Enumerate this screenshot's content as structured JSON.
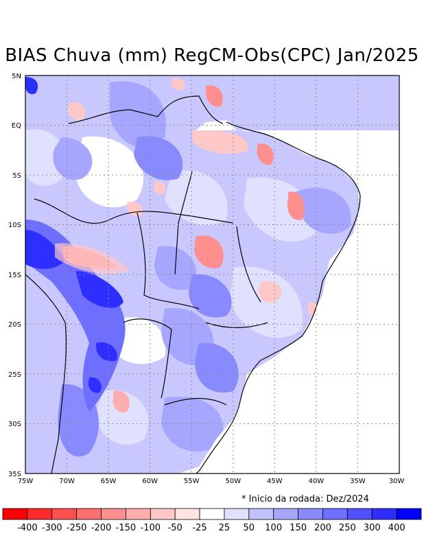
{
  "title": "BIAS Chuva (mm) RegCM-Obs(CPC) Jan/2025",
  "note": "* Inicio da rodada: Dez/2024",
  "map": {
    "lon_range": [
      -75,
      -30
    ],
    "lat_range": [
      -35,
      5
    ],
    "lat_labels": [
      "5N",
      "EQ",
      "5S",
      "10S",
      "15S",
      "20S",
      "25S",
      "30S",
      "35S"
    ],
    "lon_labels": [
      "75W",
      "70W",
      "65W",
      "60W",
      "55W",
      "50W",
      "45W",
      "40W",
      "35W",
      "30W"
    ]
  },
  "colorbar": {
    "colors": [
      "#ff0000",
      "#ff2a2a",
      "#ff5050",
      "#ff6e6e",
      "#ff8f8f",
      "#ffadad",
      "#ffc8c8",
      "#ffe2e2",
      "#ffffff",
      "#e0e0ff",
      "#c2c2ff",
      "#a6a6ff",
      "#8a8aff",
      "#6e6eff",
      "#5050ff",
      "#2e2eff",
      "#0000ff"
    ],
    "labels": [
      "-400",
      "-300",
      "-250",
      "-200",
      "-150",
      "-100",
      "-50",
      "-25",
      "25",
      "50",
      "100",
      "150",
      "200",
      "250",
      "300",
      "400"
    ]
  },
  "fields": [
    {
      "name": "base-blue-land",
      "color": "#c8c8ff"
    },
    {
      "name": "light-blue",
      "color": "#e0e0ff"
    },
    {
      "name": "mid-blue",
      "color": "#a6a6ff"
    },
    {
      "name": "strong-blue",
      "color": "#6e6eff"
    },
    {
      "name": "deep-blue",
      "color": "#2e2eff"
    },
    {
      "name": "light-red",
      "color": "#ffc8c8"
    },
    {
      "name": "mid-red",
      "color": "#ff8f8f"
    },
    {
      "name": "white-neutral",
      "color": "#ffffff"
    }
  ]
}
